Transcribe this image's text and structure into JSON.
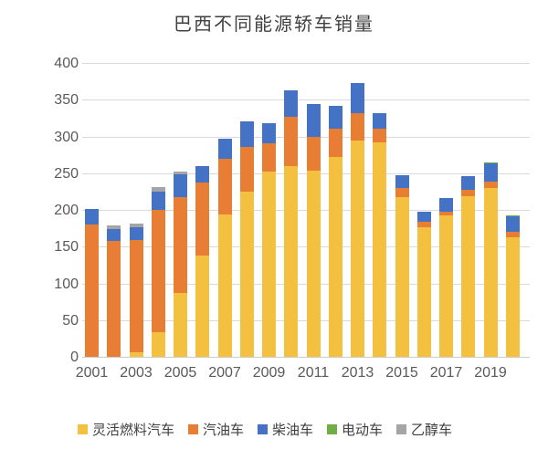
{
  "chart_data": {
    "type": "bar",
    "stacked": true,
    "title": "巴西不同能源轿车销量",
    "categories": [
      "2001",
      "2002",
      "2003",
      "2004",
      "2005",
      "2006",
      "2007",
      "2008",
      "2009",
      "2010",
      "2011",
      "2012",
      "2013",
      "2014",
      "2015",
      "2016",
      "2017",
      "2018",
      "2019",
      "2020"
    ],
    "x_tick_labels": [
      "2001",
      "2003",
      "2005",
      "2007",
      "2009",
      "2011",
      "2013",
      "2015",
      "2017",
      "2019"
    ],
    "series": [
      {
        "name": "灵活燃料汽车",
        "color": "#F3C13F",
        "values": [
          0,
          0,
          6,
          33,
          87,
          138,
          194,
          225,
          252,
          260,
          253,
          272,
          294,
          292,
          217,
          176,
          192,
          219,
          230,
          163
        ]
      },
      {
        "name": "汽油车",
        "color": "#E87D34",
        "values": [
          180,
          158,
          153,
          167,
          131,
          99,
          76,
          61,
          39,
          67,
          46,
          38,
          38,
          19,
          13,
          8,
          5,
          8,
          8,
          7
        ]
      },
      {
        "name": "柴油车",
        "color": "#4472C4",
        "values": [
          21,
          16,
          18,
          25,
          31,
          23,
          27,
          34,
          27,
          36,
          45,
          32,
          41,
          21,
          17,
          13,
          19,
          19,
          25,
          21
        ]
      },
      {
        "name": "电动车",
        "color": "#70AD47",
        "values": [
          0,
          0,
          0,
          0,
          0,
          0,
          0,
          0,
          0,
          0,
          0,
          0,
          0,
          0,
          0,
          0,
          0,
          0,
          2,
          2
        ]
      },
      {
        "name": "乙醇车",
        "color": "#A5A5A5",
        "values": [
          0,
          5,
          5,
          6,
          3,
          0,
          0,
          0,
          0,
          0,
          0,
          0,
          0,
          0,
          0,
          0,
          0,
          0,
          0,
          0
        ]
      }
    ],
    "ylim": [
      0,
      400
    ],
    "y_tick_step": 50,
    "y_tick_labels": [
      "0",
      "50",
      "100",
      "150",
      "200",
      "250",
      "300",
      "350",
      "400"
    ],
    "grid": true,
    "legend_position": "bottom"
  },
  "colors": {
    "background": "#FFFFFF",
    "title_text": "#404040",
    "axis_label_text": "#595959",
    "gridline": "#D9D9D9",
    "axis_line": "#CCCCCC"
  }
}
